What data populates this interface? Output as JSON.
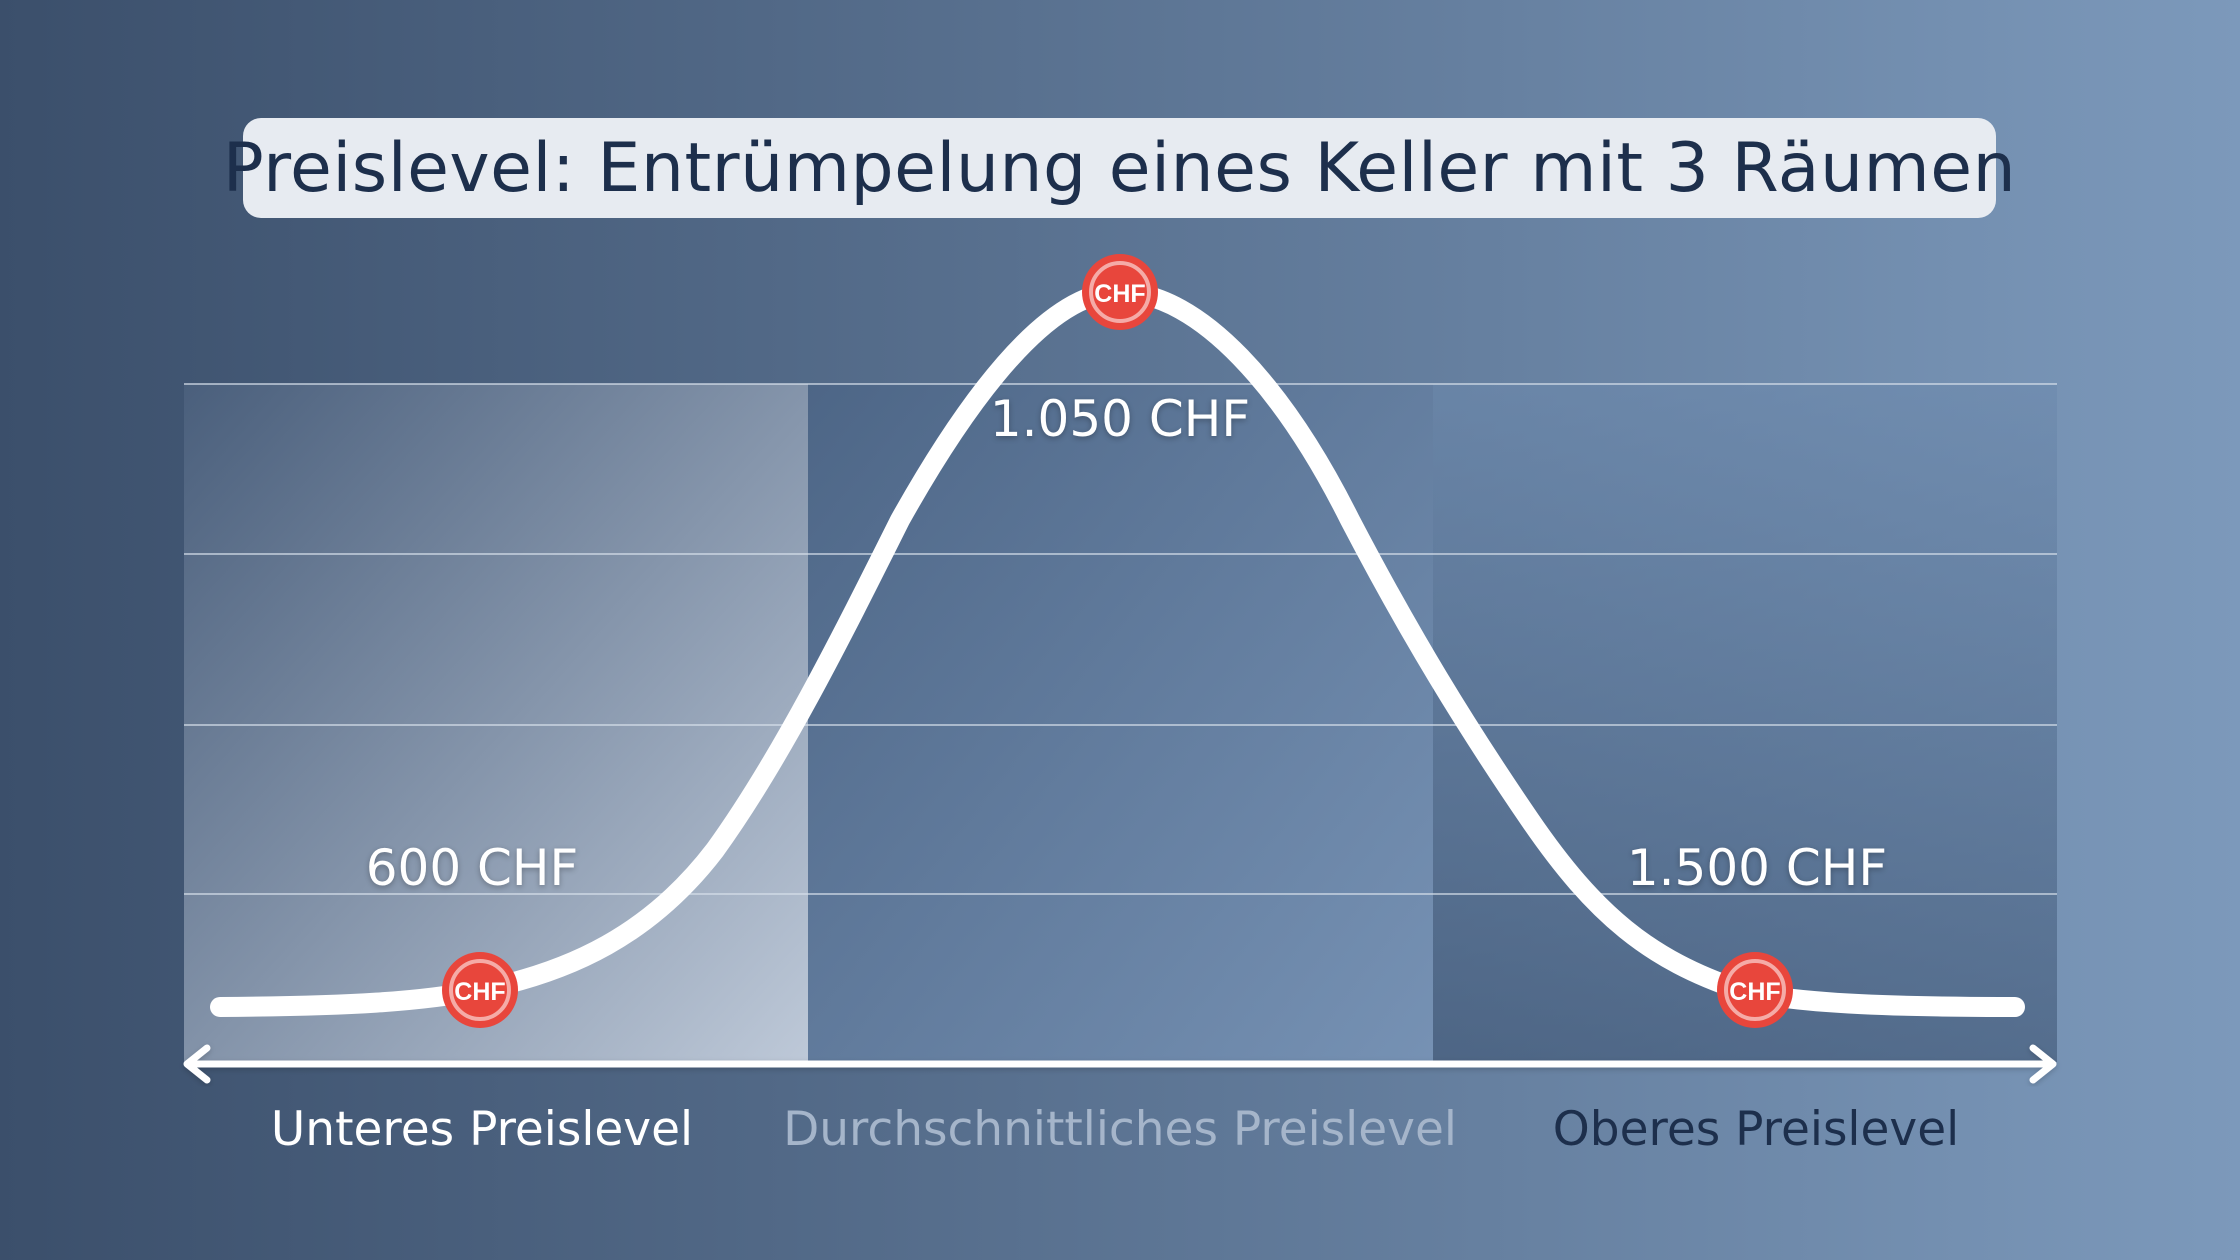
{
  "title": "Preislevel: Entrümpelung eines Keller mit 3 Räumen",
  "colors": {
    "background_left": "#3b4f6b",
    "background_right": "#7c99bb",
    "title_box": "#e7ebf1",
    "title_text": "#1d2f4c",
    "curve": "#ffffff",
    "marker": "#e8463c",
    "marker_text": "#ffffff"
  },
  "markers": {
    "icon": "chf-coin-icon",
    "text": "CHF"
  },
  "chart_data": {
    "type": "line",
    "title": "Preislevel: Entrümpelung eines Keller mit 3 Räumen",
    "categories": [
      "Unteres Preislevel",
      "Durchschnittliches Preislevel",
      "Oberes Preislevel"
    ],
    "points": [
      {
        "category": "Unteres Preislevel",
        "label": "600 CHF",
        "value": 600
      },
      {
        "category": "Durchschnittliches Preislevel",
        "label": "1.050 CHF",
        "value": 1050
      },
      {
        "category": "Oberes Preislevel",
        "label": "1.500 CHF",
        "value": 1500
      }
    ],
    "grid": true,
    "legend": "none"
  }
}
